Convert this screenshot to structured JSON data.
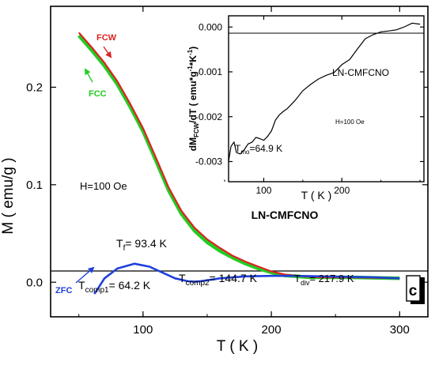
{
  "chart_data": [
    {
      "type": "line",
      "xlabel": "T ( K )",
      "ylabel": "M ( emu/g )",
      "xlim": [
        28,
        322
      ],
      "ylim": [
        -0.0355,
        0.283
      ],
      "x_ticks": [
        100,
        200,
        300
      ],
      "x_tick_labels": [
        "100",
        "200",
        "300"
      ],
      "y_ticks": [
        0.0,
        0.1,
        0.2
      ],
      "y_tick_labels": [
        "0.0",
        "0.1",
        "0.2"
      ],
      "grid": false,
      "legend": "none",
      "series": [
        {
          "name": "FCC",
          "color": "#22cc22",
          "x": [
            50,
            60,
            70,
            80,
            90,
            100,
            110,
            120,
            130,
            140,
            150,
            160,
            170,
            180,
            190,
            200,
            210,
            220,
            230,
            240,
            260,
            280,
            300
          ],
          "y": [
            0.253,
            0.238,
            0.222,
            0.203,
            0.18,
            0.155,
            0.125,
            0.094,
            0.07,
            0.053,
            0.041,
            0.032,
            0.025,
            0.019,
            0.014,
            0.01,
            0.007,
            0.006,
            0.005,
            0.005,
            0.005,
            0.0045,
            0.004
          ]
        },
        {
          "name": "FCW",
          "color": "#dd2222",
          "x": [
            50,
            60,
            70,
            80,
            90,
            100,
            110,
            120,
            130,
            140,
            150,
            160,
            170,
            180,
            190,
            200,
            210,
            220,
            230,
            240,
            260,
            280,
            300
          ],
          "y": [
            0.256,
            0.241,
            0.225,
            0.206,
            0.183,
            0.158,
            0.128,
            0.097,
            0.073,
            0.056,
            0.044,
            0.035,
            0.027,
            0.021,
            0.016,
            0.011,
            0.008,
            0.0065,
            0.0055,
            0.005,
            0.005,
            0.0045,
            0.004
          ]
        },
        {
          "name": "ZFC",
          "color": "#1f3fdd",
          "x": [
            62,
            64.2,
            70,
            80,
            93.4,
            105,
            115,
            125,
            135,
            140,
            144.7,
            160,
            180,
            200,
            217.9,
            240,
            260,
            280,
            300
          ],
          "y": [
            -0.012,
            -0.008,
            0.004,
            0.014,
            0.019,
            0.016,
            0.01,
            0.004,
            0.001,
            0.0005,
            0.001,
            0.004,
            0.006,
            0.0065,
            0.0065,
            0.006,
            0.0055,
            0.005,
            0.004
          ]
        }
      ],
      "annotations": {
        "fcw": "FCW",
        "fcc": "FCC",
        "zfc": "ZFC",
        "field": "H=100 Oe",
        "sample": "LN-CMFCNO",
        "panel": "c",
        "tf_main": "T",
        "tf_sub": "f",
        "tf_val": "= 93.4 K",
        "tc1_main": "T",
        "tc1_sub": "comp1",
        "tc1_val": "= 64.2 K",
        "tc2_main": "T",
        "tc2_sub": "comp2",
        "tc2_val": "= 144.7 K",
        "tdiv_main": "T",
        "tdiv_sub": "div",
        "tdiv_val": "= 217.9 K"
      }
    },
    {
      "type": "line",
      "xlabel": "T ( K )",
      "ylabel_main": "dM",
      "ylabel_sub": "FCW",
      "ylabel_rest": "/dT ( emu*g",
      "ylabel_sup1": "-1",
      "ylabel_mid": "*K",
      "ylabel_sup2": "-1",
      "ylabel_end": ")",
      "xlim": [
        55,
        305
      ],
      "ylim": [
        -0.00345,
        0.00025
      ],
      "x_ticks": [
        100,
        200
      ],
      "x_tick_labels": [
        "100",
        "200"
      ],
      "y_ticks": [
        0.0,
        -0.001,
        -0.002,
        -0.003
      ],
      "y_tick_labels": [
        "0.000",
        "-0.001",
        "-0.002",
        "-0.003"
      ],
      "grid": false,
      "legend": "none",
      "series": [
        {
          "color": "#000000",
          "x": [
            55,
            58,
            62,
            65,
            70,
            75,
            80,
            85,
            90,
            95,
            100,
            105,
            110,
            115,
            120,
            125,
            130,
            140,
            150,
            160,
            170,
            180,
            190,
            200,
            210,
            220,
            230,
            240,
            250,
            260,
            270,
            280,
            290,
            300
          ],
          "y": [
            -0.003,
            -0.0027,
            -0.0026,
            -0.0028,
            -0.0028,
            -0.0027,
            -0.0026,
            -0.0026,
            -0.0025,
            -0.0025,
            -0.0025,
            -0.0024,
            -0.0023,
            -0.0021,
            -0.002,
            -0.0019,
            -0.0018,
            -0.0016,
            -0.0014,
            -0.0013,
            -0.0012,
            -0.0011,
            -0.001,
            -0.0008,
            -0.0007,
            -0.0005,
            -0.0003,
            -0.0002,
            -0.0001,
            -5e-05,
            -3e-05,
            0.0,
            5e-05,
            3e-05
          ]
        }
      ],
      "annotations": {
        "sample": "LN-CMFCNO",
        "field": "H=100 Oe",
        "tmo_main": "T",
        "tmo_sub": "mo",
        "tmo_val": "=64.9 K"
      }
    }
  ]
}
